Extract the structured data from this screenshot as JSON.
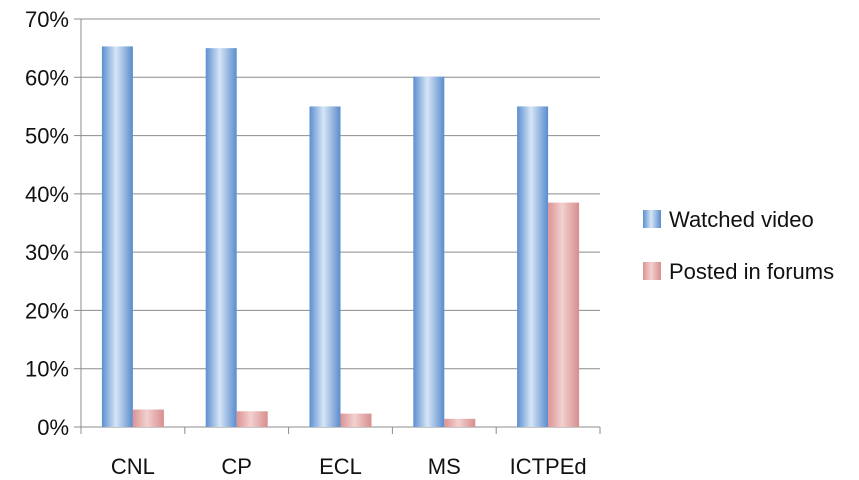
{
  "chart_data": {
    "type": "bar",
    "categories": [
      "CNL",
      "CP",
      "ECL",
      "MS",
      "ICTPEd"
    ],
    "series": [
      {
        "name": "Watched video",
        "values": [
          65.3,
          65.0,
          55.0,
          60.1,
          55.0
        ],
        "color": "#7ea6d8"
      },
      {
        "name": "Posted in forums",
        "values": [
          3.0,
          2.7,
          2.3,
          1.4,
          38.5
        ],
        "color": "#e8a8a8"
      }
    ],
    "ylim": [
      0,
      70
    ],
    "ytick_values": [
      0,
      10,
      20,
      30,
      40,
      50,
      60,
      70
    ],
    "ytick_labels": [
      "0%",
      "10%",
      "20%",
      "30%",
      "40%",
      "50%",
      "60%",
      "70%"
    ],
    "grid": true,
    "legend_position": "right"
  }
}
